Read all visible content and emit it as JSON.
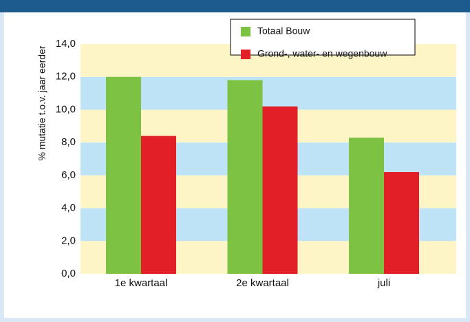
{
  "chart_data": {
    "type": "bar",
    "y_label": "% mutatie t.o.v. jaar eerder",
    "categories": [
      "1e kwartaal",
      "2e kwartaal",
      "juli"
    ],
    "series": [
      {
        "name": "Totaal Bouw",
        "color": "#7dc242",
        "values": [
          12.0,
          11.8,
          8.3
        ]
      },
      {
        "name": "Grond-, water- en wegenbouw",
        "color": "#e21e26",
        "values": [
          8.4,
          10.2,
          6.2
        ]
      }
    ],
    "ylim": [
      0,
      14
    ],
    "yticks": [
      {
        "value": 0,
        "label": "0,0"
      },
      {
        "value": 2,
        "label": "2,0"
      },
      {
        "value": 4,
        "label": "4,0"
      },
      {
        "value": 6,
        "label": "6,0"
      },
      {
        "value": 8,
        "label": "8,0"
      },
      {
        "value": 10,
        "label": "10,0"
      },
      {
        "value": 12,
        "label": "12,0"
      },
      {
        "value": 14,
        "label": "14,0"
      }
    ],
    "band_colors": [
      "#fdf5c6",
      "#bfe3f6"
    ]
  }
}
